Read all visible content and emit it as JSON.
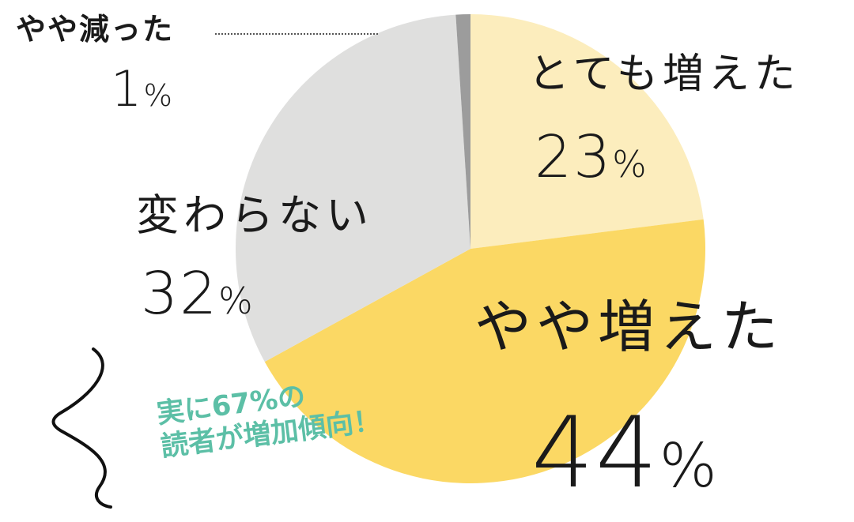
{
  "chart_data": {
    "type": "pie",
    "slices": [
      {
        "label": "とても増えた",
        "value": 23,
        "display": "23",
        "color": "#fcedbd"
      },
      {
        "label": "やや増えた",
        "value": 44,
        "display": "44",
        "color": "#fbd864"
      },
      {
        "label": "変わらない",
        "value": 32,
        "display": "32",
        "color": "#dfdfde"
      },
      {
        "label": "やや減った",
        "value": 1,
        "display": "1",
        "color": "#9c9c9c"
      }
    ],
    "percent_sign": "%",
    "start": "12 o'clock",
    "direction": "clockwise",
    "callout": [
      "実に67%の",
      "読者が増加傾向！"
    ],
    "callout_color": "#5cbfa6"
  }
}
